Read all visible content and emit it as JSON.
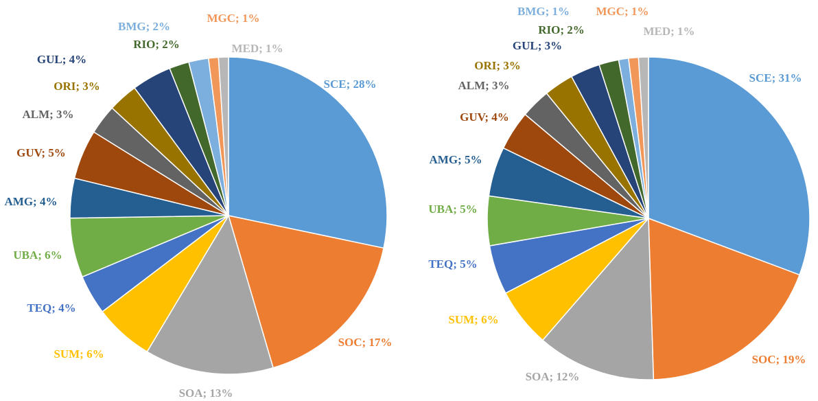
{
  "chart_data": [
    {
      "type": "pie",
      "values": [
        28,
        17,
        13,
        6,
        4,
        6,
        4,
        5,
        3,
        3,
        4,
        2,
        2,
        1,
        1
      ],
      "value_labels": [
        "SCE; 28%",
        "SOC; 17%",
        "SOA; 13%",
        "SUM; 6%",
        "TEQ; 4%",
        "UBA; 6%",
        "AMG; 4%",
        "GUV; 5%",
        "ALM; 3%",
        "ORI; 3%",
        "GUL; 4%",
        "RIO; 2%",
        "BMG; 2%",
        "MGC; 1%",
        "MED; 1%"
      ],
      "colors": [
        "#5b9bd5",
        "#ed7d31",
        "#a5a5a5",
        "#ffc000",
        "#4472c4",
        "#70ad47",
        "#255e91",
        "#9e480e",
        "#636363",
        "#997300",
        "#264478",
        "#43682b",
        "#7cafdd",
        "#f1975a",
        "#b7b7b7"
      ]
    },
    {
      "type": "pie",
      "values": [
        31,
        19,
        12,
        6,
        5,
        5,
        5,
        4,
        3,
        3,
        3,
        2,
        1,
        1,
        1
      ],
      "value_labels": [
        "SCE; 31%",
        "SOC; 19%",
        "SOA; 12%",
        "SUM; 6%",
        "TEQ; 5%",
        "UBA; 5%",
        "AMG; 5%",
        "GUV; 4%",
        "ALM; 3%",
        "ORI; 3%",
        "GUL; 3%",
        "RIO; 2%",
        "BMG; 1%",
        "MGC; 1%",
        "MED; 1%"
      ],
      "colors": [
        "#5b9bd5",
        "#ed7d31",
        "#a5a5a5",
        "#ffc000",
        "#4472c4",
        "#70ad47",
        "#255e91",
        "#9e480e",
        "#636363",
        "#997300",
        "#264478",
        "#43682b",
        "#7cafdd",
        "#f1975a",
        "#b7b7b7"
      ]
    }
  ]
}
